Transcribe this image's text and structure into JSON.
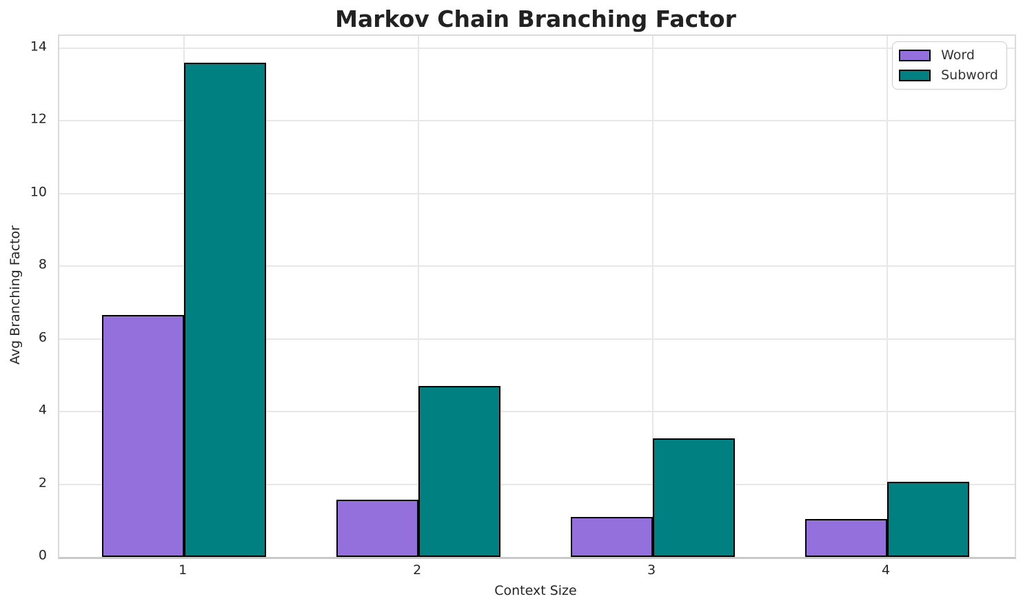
{
  "title": "Markov Chain Branching Factor",
  "chart_data": {
    "type": "bar",
    "title": "Markov Chain Branching Factor",
    "xlabel": "Context Size",
    "ylabel": "Avg Branching Factor",
    "categories": [
      "1",
      "2",
      "3",
      "4"
    ],
    "series": [
      {
        "name": "Word",
        "color": "#9370DB",
        "values": [
          6.65,
          1.57,
          1.1,
          1.04
        ]
      },
      {
        "name": "Subword",
        "color": "#008080",
        "values": [
          13.6,
          4.7,
          3.26,
          2.06
        ]
      }
    ],
    "bar_width": 0.35,
    "bar_edge_color": "#000000",
    "ylim": [
      0,
      14.34
    ],
    "yticks": [
      0,
      2,
      4,
      6,
      8,
      10,
      12,
      14
    ],
    "xlim": [
      -0.533,
      3.544
    ],
    "grid": true,
    "grid_color": "#e7e7e7",
    "background": "#ffffff",
    "legend_position": "upper right"
  }
}
